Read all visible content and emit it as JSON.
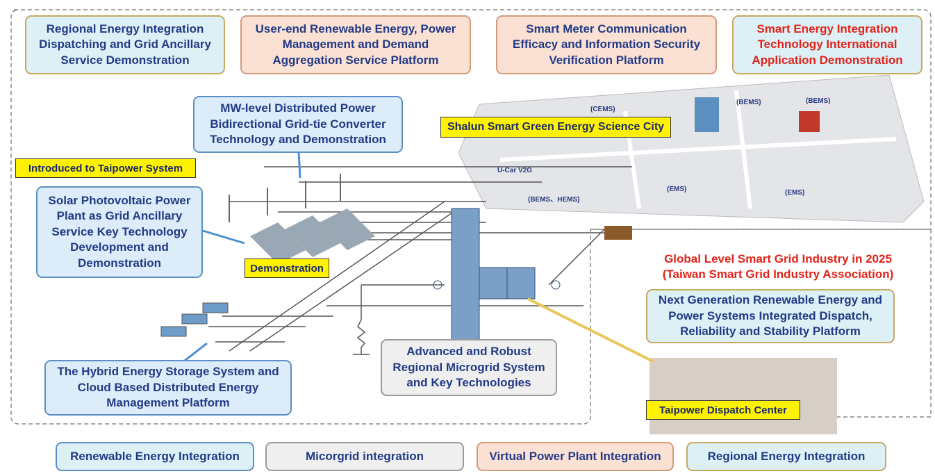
{
  "top_boxes": [
    "Regional Energy Integration Dispatching and Grid Ancillary Service Demonstration",
    "User-end Renewable Energy, Power Management and Demand Aggregation Service Platform",
    "Smart Meter Communication Efficacy and Information Security Verification Platform",
    "Smart Energy Integration Technology International Application Demonstration"
  ],
  "converter_box": "MW-level Distributed Power Bidirectional Grid-tie Converter Technology and Demonstration",
  "solar_box": "Solar Photovoltaic Power Plant as Grid Ancillary Service Key Technology Development and Demonstration",
  "storage_box": "The Hybrid Energy Storage System and Cloud Based Distributed Energy Management Platform",
  "microgrid_box": "Advanced and Robust Regional Microgrid System and Key Technologies",
  "dispatch_box": "Next Generation Renewable Energy and Power Systems Integrated Dispatch, Reliability and Stability Platform",
  "industry_note": {
    "line1": "Global Level Smart Grid Industry in 2025",
    "line2": "(Taiwan Smart Grid Industry Association)"
  },
  "tags": {
    "introduced": "Introduced to Taipower System",
    "demonstration": "Demonstration",
    "science_city": "Shalun Smart Green Energy Science City",
    "dispatch_center": "Taipower Dispatch Center"
  },
  "map_labels": {
    "cems": "(CEMS)",
    "office": "(BEMS)",
    "campus": "(BEMS)",
    "housing": "(BEMS、HEMS)",
    "park1": "(EMS)",
    "park2": "(EMS)",
    "ucar": "U-Car V2G"
  },
  "legend": [
    "Renewable Energy Integration",
    "Micorgrid integration",
    "Virtual Power Plant Integration",
    "Regional Energy Integration"
  ]
}
